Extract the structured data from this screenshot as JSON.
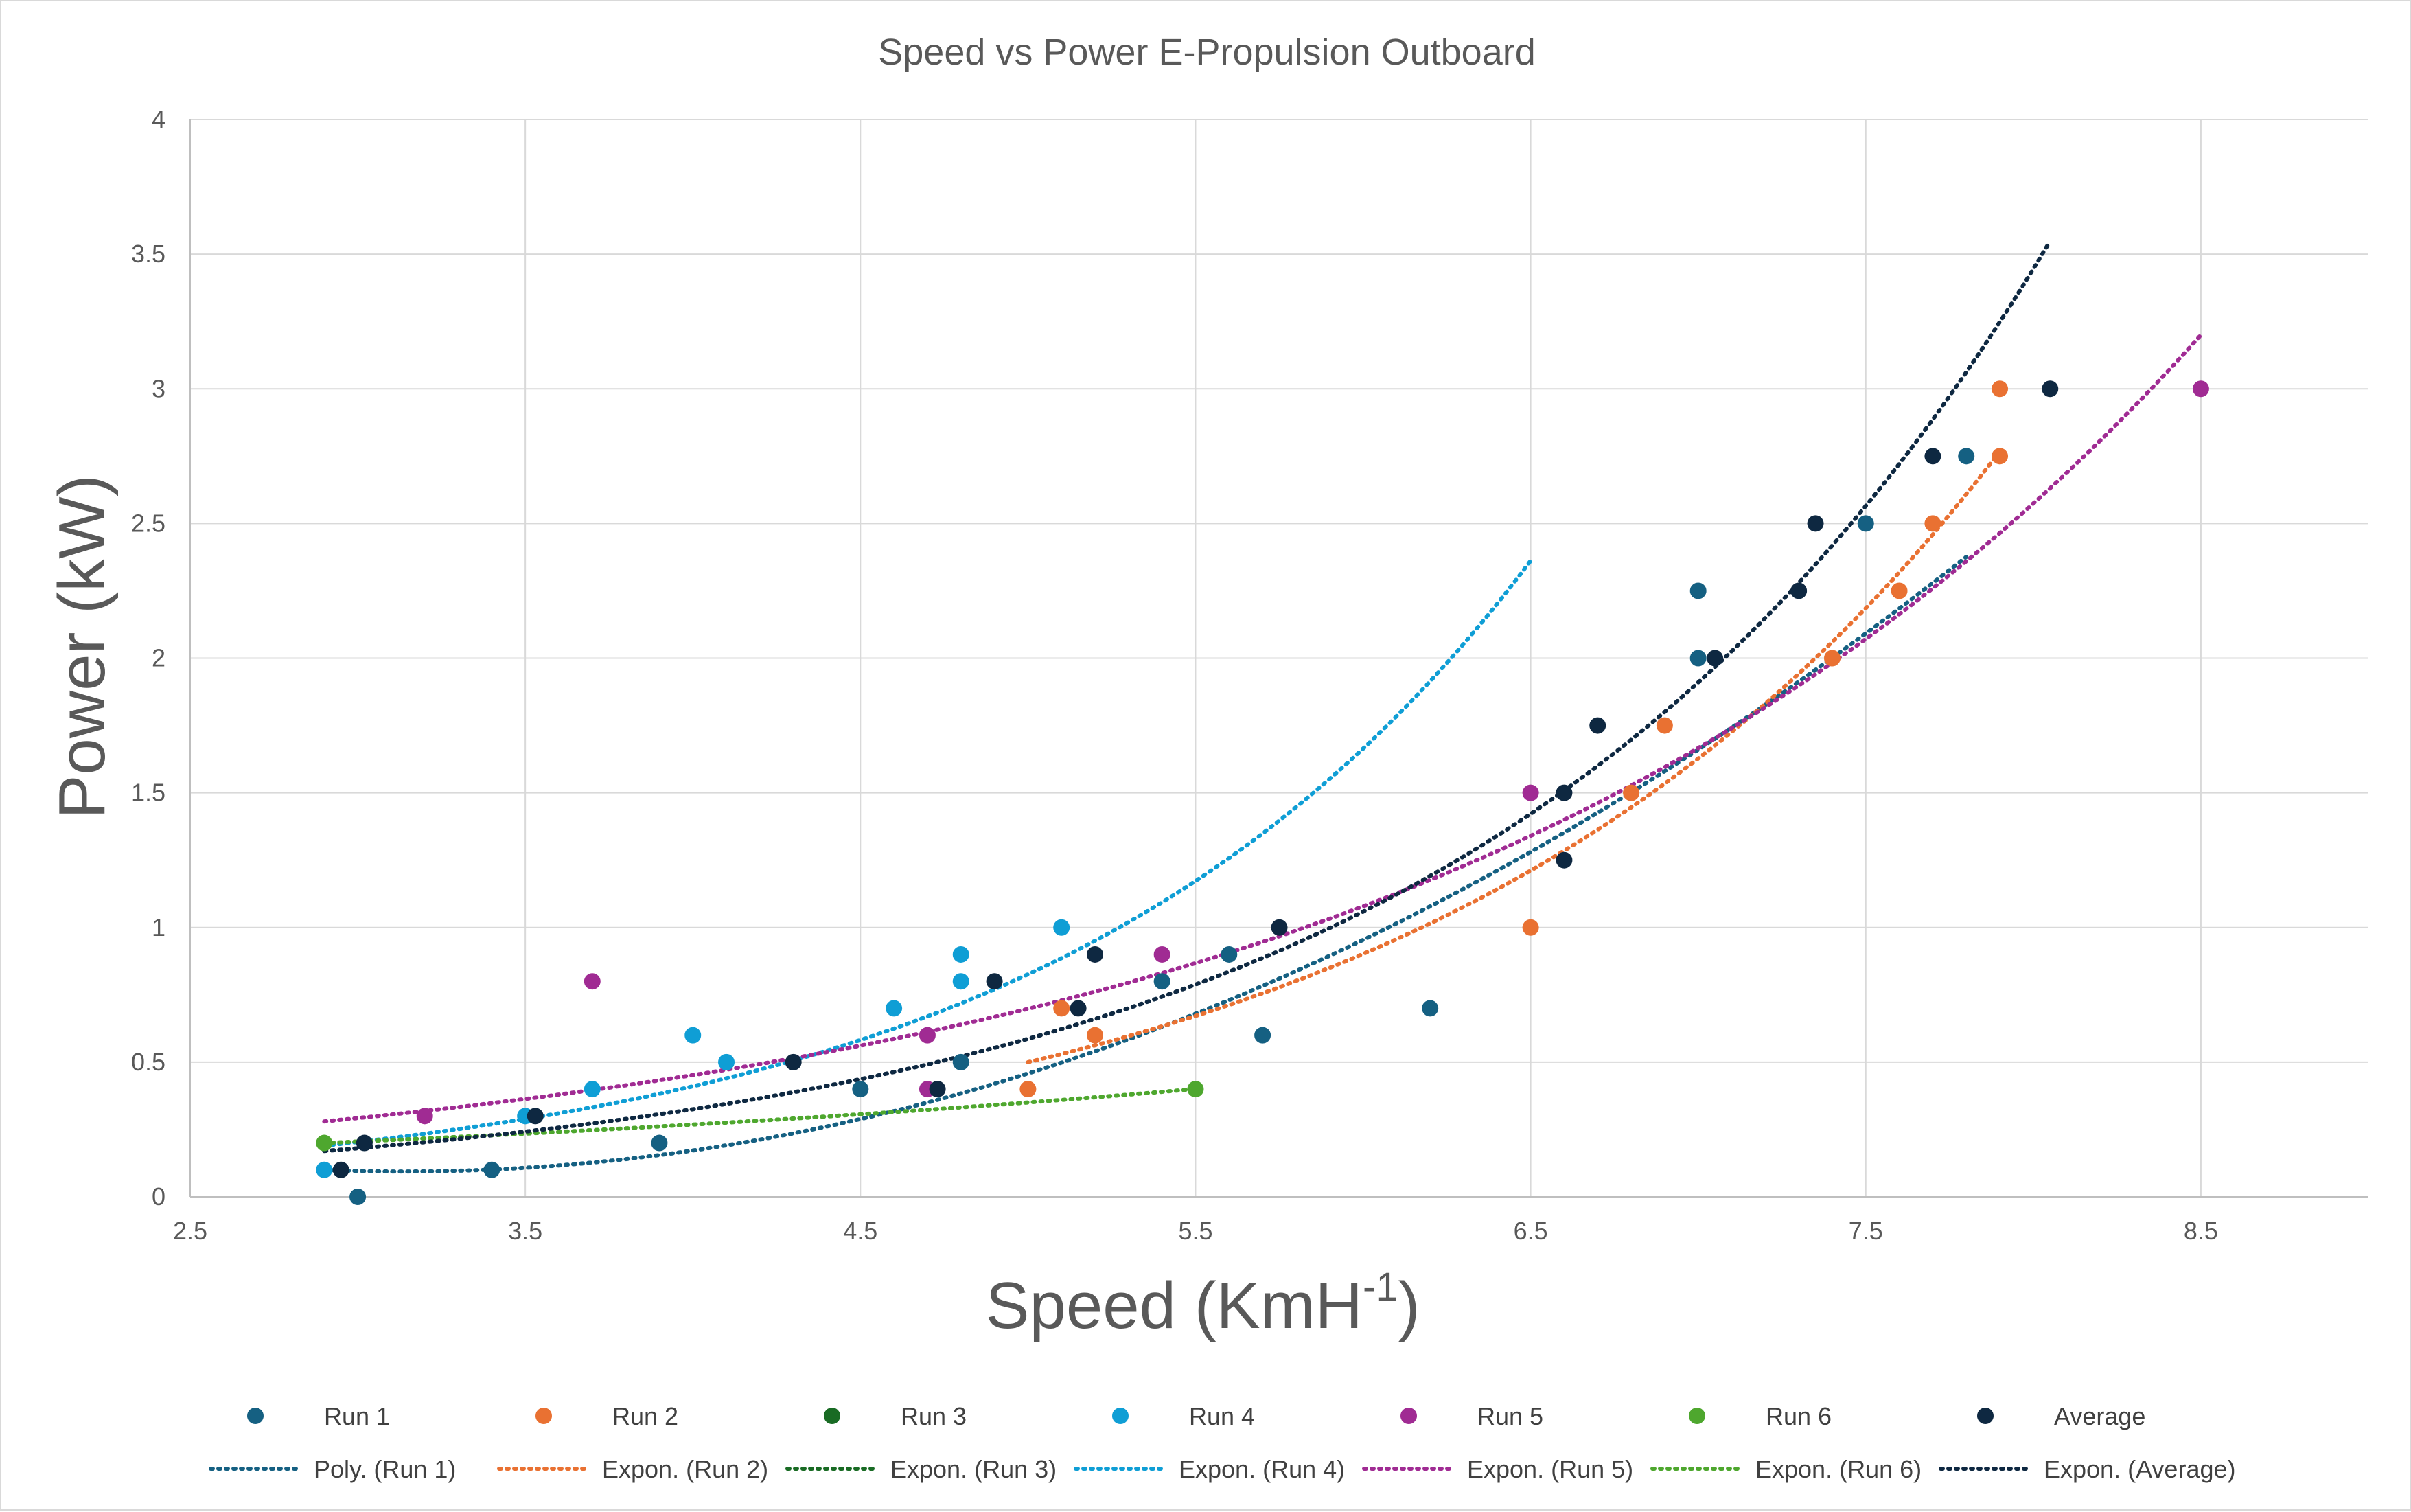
{
  "chart_data": {
    "type": "scatter",
    "title": "Speed vs Power E-Propulsion Outboard",
    "xlabel": "Speed (KmH",
    "xlabel_superscript": "-1",
    "xlabel_suffix": ")",
    "ylabel": "Power (kW)",
    "xlim": [
      2.5,
      9.0
    ],
    "ylim": [
      0,
      4
    ],
    "xticks": [
      "2.5",
      "3.5",
      "4.5",
      "5.5",
      "6.5",
      "7.5",
      "8.5"
    ],
    "xtick_values": [
      2.5,
      3.5,
      4.5,
      5.5,
      6.5,
      7.5,
      8.5
    ],
    "yticks": [
      "0",
      "0.5",
      "1",
      "1.5",
      "2",
      "2.5",
      "3",
      "3.5",
      "4"
    ],
    "ytick_values": [
      0,
      0.5,
      1,
      1.5,
      2,
      2.5,
      3,
      3.5,
      4
    ],
    "grid": true,
    "legend_position": "bottom",
    "series": [
      {
        "name": "Run 1",
        "color": "#156082",
        "points": [
          [
            3.0,
            0.0
          ],
          [
            3.4,
            0.1
          ],
          [
            3.9,
            0.2
          ],
          [
            4.5,
            0.4
          ],
          [
            4.8,
            0.5
          ],
          [
            5.4,
            0.8
          ],
          [
            5.6,
            0.9
          ],
          [
            5.7,
            0.6
          ],
          [
            6.2,
            0.7
          ],
          [
            7.0,
            2.25
          ],
          [
            7.0,
            2.0
          ],
          [
            7.5,
            2.5
          ],
          [
            7.8,
            2.75
          ]
        ],
        "trend": {
          "name": "Poly. (Run 1)",
          "kind": "poly",
          "coef": [
            0.1,
            -0.05,
            0.105
          ],
          "x0": 2.9,
          "range": [
            2.9,
            7.8
          ]
        }
      },
      {
        "name": "Run 2",
        "color": "#E97132",
        "points": [
          [
            5.0,
            0.4
          ],
          [
            5.1,
            0.7
          ],
          [
            5.2,
            0.6
          ],
          [
            6.5,
            1.0
          ],
          [
            6.8,
            1.5
          ],
          [
            6.9,
            1.75
          ],
          [
            7.4,
            2.0
          ],
          [
            7.6,
            2.25
          ],
          [
            7.7,
            2.5
          ],
          [
            7.9,
            2.75
          ],
          [
            7.9,
            3.0
          ]
        ],
        "trend": {
          "name": "Expon. (Run 2)",
          "kind": "exp",
          "a": 0.5,
          "b": 0.59,
          "x0": 5.0,
          "range": [
            5.0,
            7.9
          ]
        }
      },
      {
        "name": "Run 3",
        "color": "#196B24",
        "points": [],
        "trend": {
          "name": "Expon. (Run 3)",
          "kind": "none"
        }
      },
      {
        "name": "Run 4",
        "color": "#0F9ED5",
        "points": [
          [
            2.9,
            0.1
          ],
          [
            3.5,
            0.3
          ],
          [
            3.7,
            0.4
          ],
          [
            4.0,
            0.6
          ],
          [
            4.1,
            0.5
          ],
          [
            4.6,
            0.7
          ],
          [
            4.8,
            0.8
          ],
          [
            4.8,
            0.9
          ],
          [
            5.1,
            1.0
          ]
        ],
        "trend": {
          "name": "Expon. (Run 4)",
          "kind": "exp",
          "a": 0.19,
          "b": 0.7,
          "x0": 2.9,
          "range": [
            2.9,
            6.5
          ]
        }
      },
      {
        "name": "Run 5",
        "color": "#A02B93",
        "points": [
          [
            3.2,
            0.3
          ],
          [
            3.7,
            0.8
          ],
          [
            4.7,
            0.4
          ],
          [
            4.7,
            0.6
          ],
          [
            5.4,
            0.9
          ],
          [
            6.5,
            1.5
          ],
          [
            8.5,
            3.0
          ]
        ],
        "trend": {
          "name": "Expon. (Run 5)",
          "kind": "exp",
          "a": 0.28,
          "b": 0.435,
          "x0": 2.9,
          "range": [
            2.9,
            8.5
          ]
        }
      },
      {
        "name": "Run 6",
        "color": "#4EA72E",
        "points": [
          [
            2.9,
            0.2
          ],
          [
            5.5,
            0.4
          ]
        ],
        "trend": {
          "name": "Expon. (Run 6)",
          "kind": "exp",
          "a": 0.2,
          "b": 0.267,
          "x0": 2.9,
          "range": [
            2.9,
            5.5
          ]
        }
      },
      {
        "name": "Average",
        "color": "#0E2841",
        "points": [
          [
            2.95,
            0.1
          ],
          [
            3.02,
            0.2
          ],
          [
            3.53,
            0.3
          ],
          [
            4.3,
            0.5
          ],
          [
            4.73,
            0.4
          ],
          [
            4.9,
            0.8
          ],
          [
            5.15,
            0.7
          ],
          [
            5.2,
            0.9
          ],
          [
            5.75,
            1.0
          ],
          [
            6.6,
            1.25
          ],
          [
            6.6,
            1.5
          ],
          [
            6.7,
            1.75
          ],
          [
            7.05,
            2.0
          ],
          [
            7.3,
            2.25
          ],
          [
            7.35,
            2.5
          ],
          [
            7.7,
            2.75
          ],
          [
            8.05,
            3.0
          ]
        ],
        "trend": {
          "name": "Expon. (Average)",
          "kind": "exp",
          "a": 0.17,
          "b": 0.59,
          "x0": 2.9,
          "range": [
            2.9,
            8.05
          ]
        }
      }
    ]
  }
}
